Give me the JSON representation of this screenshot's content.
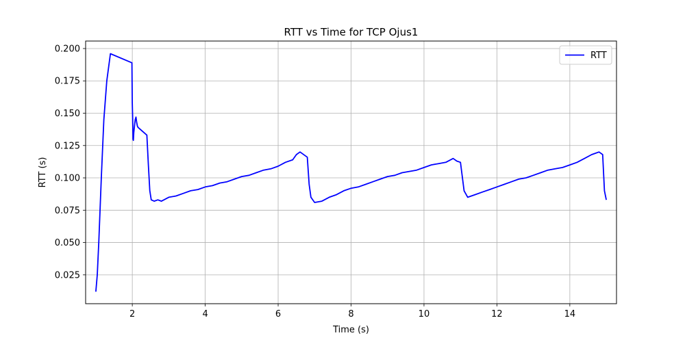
{
  "chart_data": {
    "type": "line",
    "title": "RTT vs Time for TCP Ojus1",
    "xlabel": "Time (s)",
    "ylabel": "RTT (s)",
    "xlim": [
      0.72,
      15.28
    ],
    "ylim": [
      0.0027,
      0.2058
    ],
    "xticks": [
      2,
      4,
      6,
      8,
      10,
      12,
      14
    ],
    "xtick_labels": [
      "2",
      "4",
      "6",
      "8",
      "10",
      "12",
      "14"
    ],
    "yticks": [
      0.025,
      0.05,
      0.075,
      0.1,
      0.125,
      0.15,
      0.175,
      0.2
    ],
    "ytick_labels": [
      "0.025",
      "0.050",
      "0.075",
      "0.100",
      "0.125",
      "0.150",
      "0.175",
      "0.200"
    ],
    "grid": true,
    "legend_position": "top-right",
    "series": [
      {
        "name": "RTT",
        "color": "#0000ff",
        "x": [
          1.0,
          1.04,
          1.08,
          1.15,
          1.22,
          1.3,
          1.4,
          1.99,
          2.0,
          2.01,
          2.02,
          2.03,
          2.04,
          2.06,
          2.08,
          2.1,
          2.12,
          2.14,
          2.16,
          2.4,
          2.44,
          2.48,
          2.52,
          2.6,
          2.7,
          2.8,
          3.0,
          3.2,
          3.4,
          3.6,
          3.8,
          4.0,
          4.2,
          4.4,
          4.6,
          4.8,
          5.0,
          5.2,
          5.4,
          5.6,
          5.8,
          6.0,
          6.2,
          6.4,
          6.5,
          6.6,
          6.8,
          6.85,
          6.9,
          7.0,
          7.2,
          7.4,
          7.6,
          7.8,
          8.0,
          8.2,
          8.4,
          8.6,
          8.8,
          9.0,
          9.2,
          9.4,
          9.6,
          9.8,
          10.0,
          10.2,
          10.4,
          10.6,
          10.8,
          10.9,
          11.0,
          11.1,
          11.2,
          11.4,
          11.6,
          11.8,
          12.0,
          12.2,
          12.4,
          12.6,
          12.8,
          13.0,
          13.2,
          13.4,
          13.6,
          13.8,
          14.0,
          14.2,
          14.4,
          14.6,
          14.7,
          14.8,
          14.9,
          14.95,
          15.0
        ],
        "y": [
          0.012,
          0.025,
          0.05,
          0.1,
          0.145,
          0.175,
          0.196,
          0.189,
          0.158,
          0.145,
          0.13,
          0.129,
          0.135,
          0.14,
          0.145,
          0.147,
          0.143,
          0.14,
          0.139,
          0.133,
          0.11,
          0.09,
          0.083,
          0.082,
          0.083,
          0.082,
          0.085,
          0.086,
          0.088,
          0.09,
          0.091,
          0.093,
          0.094,
          0.096,
          0.097,
          0.099,
          0.101,
          0.102,
          0.104,
          0.106,
          0.107,
          0.109,
          0.112,
          0.114,
          0.118,
          0.12,
          0.116,
          0.095,
          0.085,
          0.081,
          0.082,
          0.085,
          0.087,
          0.09,
          0.092,
          0.093,
          0.095,
          0.097,
          0.099,
          0.101,
          0.102,
          0.104,
          0.105,
          0.106,
          0.108,
          0.11,
          0.111,
          0.112,
          0.115,
          0.113,
          0.112,
          0.09,
          0.085,
          0.087,
          0.089,
          0.091,
          0.093,
          0.095,
          0.097,
          0.099,
          0.1,
          0.102,
          0.104,
          0.106,
          0.107,
          0.108,
          0.11,
          0.112,
          0.115,
          0.118,
          0.119,
          0.12,
          0.118,
          0.09,
          0.083
        ]
      }
    ]
  }
}
